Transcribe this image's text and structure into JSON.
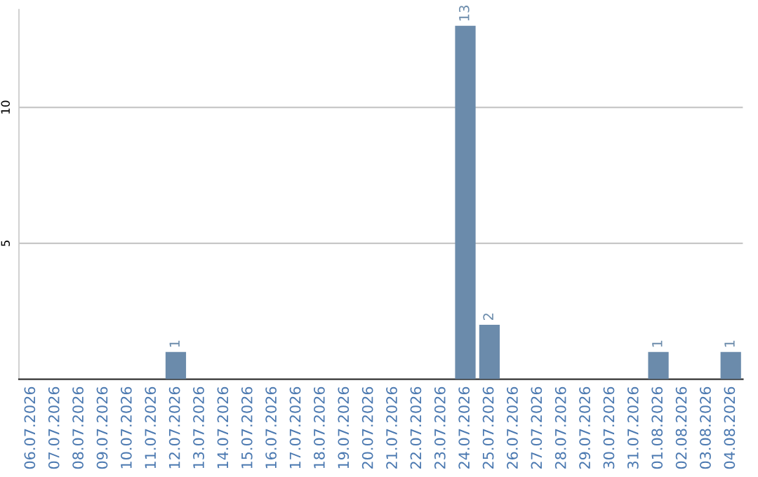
{
  "chart_data": {
    "type": "bar",
    "categories": [
      "06.07.2026",
      "07.07.2026",
      "08.07.2026",
      "09.07.2026",
      "10.07.2026",
      "11.07.2026",
      "12.07.2026",
      "13.07.2026",
      "14.07.2026",
      "15.07.2026",
      "16.07.2026",
      "17.07.2026",
      "18.07.2026",
      "19.07.2026",
      "20.07.2026",
      "21.07.2026",
      "22.07.2026",
      "23.07.2026",
      "24.07.2026",
      "25.07.2026",
      "26.07.2026",
      "27.07.2026",
      "28.07.2026",
      "29.07.2026",
      "30.07.2026",
      "31.07.2026",
      "01.08.2026",
      "02.08.2026",
      "03.08.2026",
      "04.08.2026"
    ],
    "values": [
      0,
      0,
      0,
      0,
      0,
      0,
      1,
      0,
      0,
      0,
      0,
      0,
      0,
      0,
      0,
      0,
      0,
      0,
      13,
      2,
      0,
      0,
      0,
      0,
      0,
      0,
      1,
      0,
      0,
      1
    ],
    "value_labels": [
      null,
      null,
      null,
      null,
      null,
      null,
      "1",
      null,
      null,
      null,
      null,
      null,
      null,
      null,
      null,
      null,
      null,
      null,
      "13",
      "2",
      null,
      null,
      null,
      null,
      null,
      null,
      "1",
      null,
      null,
      "1"
    ],
    "color": "#6b8bab",
    "ylim": [
      0,
      13.6
    ],
    "yticks": [
      5,
      10
    ],
    "grid": "y",
    "legend": false
  }
}
